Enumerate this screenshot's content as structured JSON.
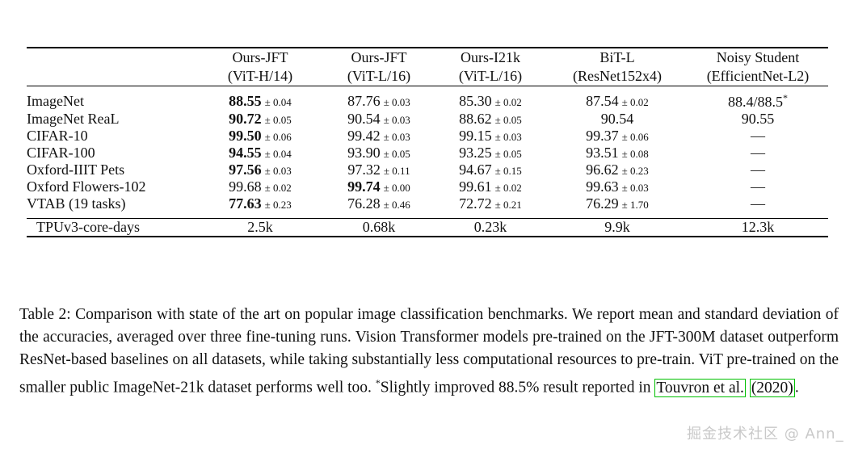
{
  "table": {
    "col_headers": [
      {
        "line1": "Ours-JFT",
        "line2": "(ViT-H/14)"
      },
      {
        "line1": "Ours-JFT",
        "line2": "(ViT-L/16)"
      },
      {
        "line1": "Ours-I21k",
        "line2": "(ViT-L/16)"
      },
      {
        "line1": "BiT-L",
        "line2": "(ResNet152x4)"
      },
      {
        "line1": "Noisy Student",
        "line2": "(EfficientNet-L2)"
      }
    ],
    "rows": [
      {
        "label": "ImageNet",
        "cells": [
          {
            "v": "88.55",
            "pm": "0.04",
            "bold": true
          },
          {
            "v": "87.76",
            "pm": "0.03"
          },
          {
            "v": "85.30",
            "pm": "0.02"
          },
          {
            "v": "87.54",
            "pm": "0.02"
          },
          {
            "v": "88.4/88.5",
            "sup": "*"
          }
        ]
      },
      {
        "label": "ImageNet ReaL",
        "cells": [
          {
            "v": "90.72",
            "pm": "0.05",
            "bold": true
          },
          {
            "v": "90.54",
            "pm": "0.03"
          },
          {
            "v": "88.62",
            "pm": "0.05"
          },
          {
            "v": "90.54"
          },
          {
            "v": "90.55"
          }
        ]
      },
      {
        "label": "CIFAR-10",
        "cells": [
          {
            "v": "99.50",
            "pm": "0.06",
            "bold": true
          },
          {
            "v": "99.42",
            "pm": "0.03"
          },
          {
            "v": "99.15",
            "pm": "0.03"
          },
          {
            "v": "99.37",
            "pm": "0.06"
          },
          {
            "v": "—"
          }
        ]
      },
      {
        "label": "CIFAR-100",
        "cells": [
          {
            "v": "94.55",
            "pm": "0.04",
            "bold": true
          },
          {
            "v": "93.90",
            "pm": "0.05"
          },
          {
            "v": "93.25",
            "pm": "0.05"
          },
          {
            "v": "93.51",
            "pm": "0.08"
          },
          {
            "v": "—"
          }
        ]
      },
      {
        "label": "Oxford-IIIT Pets",
        "cells": [
          {
            "v": "97.56",
            "pm": "0.03",
            "bold": true
          },
          {
            "v": "97.32",
            "pm": "0.11"
          },
          {
            "v": "94.67",
            "pm": "0.15"
          },
          {
            "v": "96.62",
            "pm": "0.23"
          },
          {
            "v": "—"
          }
        ]
      },
      {
        "label": "Oxford Flowers-102",
        "cells": [
          {
            "v": "99.68",
            "pm": "0.02"
          },
          {
            "v": "99.74",
            "pm": "0.00",
            "bold": true
          },
          {
            "v": "99.61",
            "pm": "0.02"
          },
          {
            "v": "99.63",
            "pm": "0.03"
          },
          {
            "v": "—"
          }
        ]
      },
      {
        "label": "VTAB (19 tasks)",
        "cells": [
          {
            "v": "77.63",
            "pm": "0.23",
            "bold": true
          },
          {
            "v": "76.28",
            "pm": "0.46"
          },
          {
            "v": "72.72",
            "pm": "0.21"
          },
          {
            "v": "76.29",
            "pm": "1.70"
          },
          {
            "v": "—"
          }
        ]
      }
    ],
    "footer_row": {
      "label": "TPUv3-core-days",
      "cells": [
        "2.5k",
        "0.68k",
        "0.23k",
        "9.9k",
        "12.3k"
      ]
    }
  },
  "caption": {
    "segments": [
      {
        "text": "Table 2:  Comparison with state of the art on popular image classification benchmarks. We report mean and standard deviation of the accuracies, averaged over three fine-tuning runs. Vision Transformer models pre-trained on the JFT-300M dataset outperform ResNet-based baselines on all datasets, while taking substantially less computational resources to pre-train. ViT pre-trained on the smaller public ImageNet-21k dataset performs well too. "
      },
      {
        "text": "*",
        "sup": true
      },
      {
        "text": "Slightly improved 88.5% result reported in "
      },
      {
        "text": "Touvron et al.",
        "link": true
      },
      {
        "text": " "
      },
      {
        "text": "(2020)",
        "link": true
      },
      {
        "text": "."
      }
    ]
  },
  "watermark": "掘金技术社区 @ Ann_"
}
